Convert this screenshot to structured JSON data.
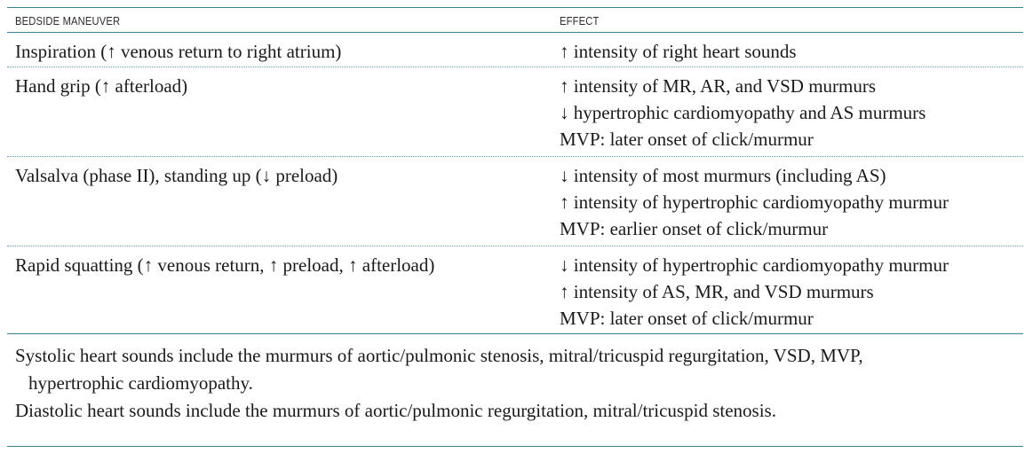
{
  "table": {
    "headers": {
      "maneuver": "BEDSIDE MANEUVER",
      "effect": "EFFECT"
    },
    "rows": [
      {
        "maneuver": "Inspiration (↑ venous return to right atrium)",
        "effects": [
          "↑ intensity of right heart sounds"
        ]
      },
      {
        "maneuver": "Hand grip (↑ afterload)",
        "effects": [
          "↑ intensity of MR, AR, and VSD murmurs",
          "↓ hypertrophic cardiomyopathy and AS murmurs",
          "MVP: later onset of click/murmur"
        ]
      },
      {
        "maneuver": "Valsalva (phase II), standing up (↓ preload)",
        "effects": [
          "↓ intensity of most murmurs (including AS)",
          "↑ intensity of hypertrophic cardiomyopathy murmur",
          "MVP: earlier onset of click/murmur"
        ]
      },
      {
        "maneuver": "Rapid squatting (↑ venous return, ↑ preload, ↑ afterload)",
        "effects": [
          "↓ intensity of hypertrophic cardiomyopathy murmur",
          "↑ intensity of AS, MR, and VSD murmurs",
          "MVP: later onset of click/murmur"
        ]
      }
    ]
  },
  "notes": {
    "systolic_line1": "Systolic heart sounds include the murmurs of aortic/pulmonic stenosis, mitral/tricuspid regurgitation, VSD, MVP,",
    "systolic_line2": "hypertrophic cardiomyopathy.",
    "diastolic": "Diastolic heart sounds include the murmurs of aortic/pulmonic regurgitation, mitral/tricuspid stenosis."
  }
}
